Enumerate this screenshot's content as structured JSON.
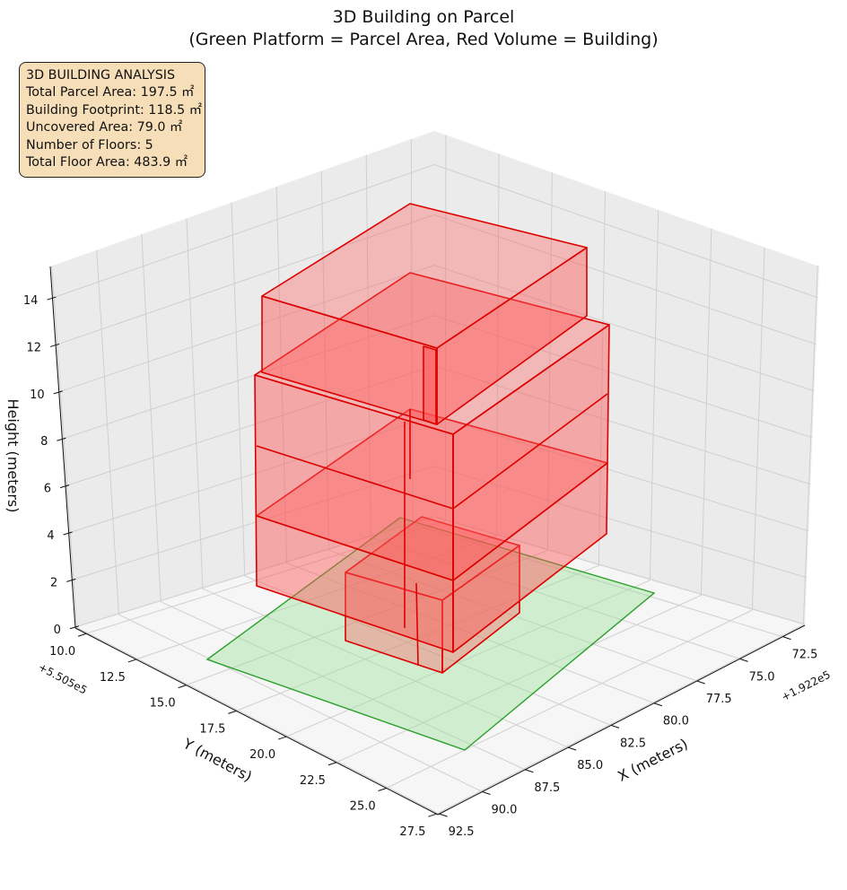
{
  "chart_data": {
    "type": "3d-bar",
    "title": "3D Building on Parcel",
    "subtitle": "(Green Platform = Parcel Area, Red Volume = Building)",
    "xlabel": "X (meters)",
    "ylabel": "Y (meters)",
    "zlabel": "Height (meters)",
    "x_offset": "+1.922e5",
    "y_offset": "+5.505e5",
    "x_ticks": [
      "72.5",
      "75.0",
      "77.5",
      "80.0",
      "82.5",
      "85.0",
      "87.5",
      "90.0",
      "92.5"
    ],
    "y_ticks": [
      "10.0",
      "12.5",
      "15.0",
      "17.5",
      "20.0",
      "22.5",
      "25.0",
      "27.5"
    ],
    "z_ticks": [
      "0",
      "2",
      "4",
      "6",
      "8",
      "10",
      "12",
      "14"
    ],
    "parcel": {
      "label": "Green Platform = Parcel Area",
      "color": "#98e098",
      "edge_color": "#2ca02c"
    },
    "building": {
      "label": "Red Volume = Building",
      "color": "#ff5555",
      "edge_color": "#dd0000",
      "floors": 5
    }
  },
  "info_box": {
    "heading": "3D BUILDING ANALYSIS",
    "lines": [
      "Total Parcel Area: 197.5 ㎡",
      "Building Footprint: 118.5 ㎡",
      "Uncovered Area: 79.0 ㎡",
      "Number of Floors: 5",
      "Total Floor Area: 483.9 ㎡"
    ]
  }
}
